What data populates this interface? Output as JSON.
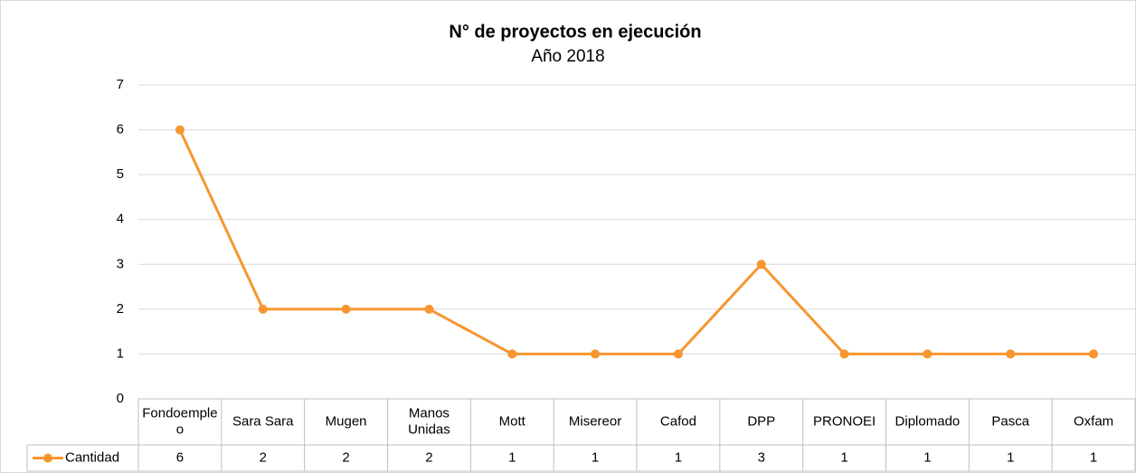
{
  "chart_data": {
    "type": "line",
    "title": "N° de proyectos en ejecución",
    "subtitle": "Año 2018",
    "categories": [
      "Fondoempleo",
      "Sara Sara",
      "Mugen",
      "Manos Unidas",
      "Mott",
      "Misereor",
      "Cafod",
      "DPP",
      "PRONOEI",
      "Diplomado",
      "Pasca",
      "Oxfam"
    ],
    "series": [
      {
        "name": "Cantidad",
        "color": "#f7962f",
        "values": [
          6,
          2,
          2,
          2,
          1,
          1,
          1,
          3,
          1,
          1,
          1,
          1
        ]
      }
    ],
    "ylim": [
      0,
      7
    ],
    "yticks": [
      0,
      1,
      2,
      3,
      4,
      5,
      6,
      7
    ],
    "grid": true,
    "data_table": true
  }
}
